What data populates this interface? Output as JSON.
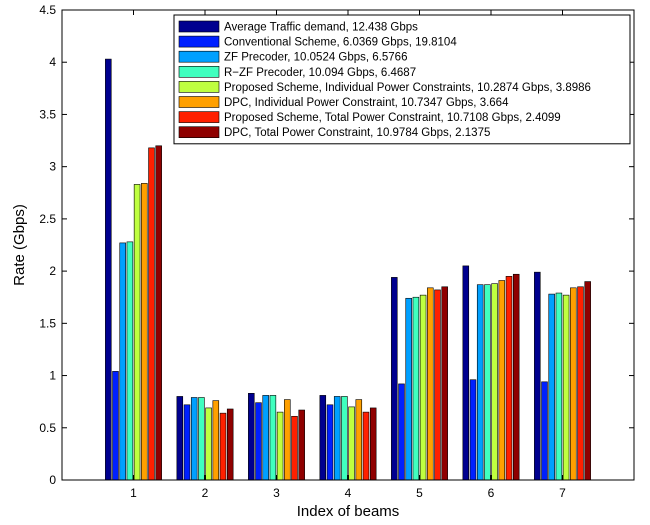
{
  "chart_data": {
    "type": "bar",
    "xlabel": "Index of beams",
    "ylabel": "Rate (Gbps)",
    "ylim": [
      0,
      4.5
    ],
    "yticks": [
      "0",
      "0.5",
      "1",
      "1.5",
      "2",
      "2.5",
      "3",
      "3.5",
      "4",
      "4.5"
    ],
    "categories": [
      "1",
      "2",
      "3",
      "4",
      "5",
      "6",
      "7"
    ],
    "grid": false,
    "legend_position": "top-right",
    "series": [
      {
        "name": "Average Traffic demand, 12.438 Gbps",
        "color": "#00008f",
        "values": [
          4.03,
          0.8,
          0.83,
          0.81,
          1.94,
          2.05,
          1.99
        ]
      },
      {
        "name": "Conventional Scheme, 6.0369 Gbps, 19.8104",
        "color": "#0020ff",
        "values": [
          1.04,
          0.72,
          0.74,
          0.72,
          0.92,
          0.96,
          0.94
        ]
      },
      {
        "name": "ZF Precoder, 10.0524 Gbps, 6.5766",
        "color": "#00a0ff",
        "values": [
          2.27,
          0.79,
          0.81,
          0.8,
          1.74,
          1.87,
          1.78
        ]
      },
      {
        "name": "R−ZF Precoder, 10.094 Gbps, 6.4687",
        "color": "#40ffbf",
        "values": [
          2.28,
          0.79,
          0.81,
          0.8,
          1.75,
          1.87,
          1.79
        ]
      },
      {
        "name": "Proposed Scheme, Individual Power Constraints, 10.2874 Gbps, 3.8986",
        "color": "#bfff40",
        "values": [
          2.83,
          0.69,
          0.65,
          0.7,
          1.77,
          1.88,
          1.77
        ]
      },
      {
        "name": "DPC, Individual Power Constraint, 10.7347 Gbps, 3.664",
        "color": "#ffa000",
        "values": [
          2.84,
          0.76,
          0.77,
          0.77,
          1.84,
          1.91,
          1.84
        ]
      },
      {
        "name": "Proposed Scheme, Total Power Constraint, 10.7108 Gbps, 2.4099",
        "color": "#ff2000",
        "values": [
          3.18,
          0.64,
          0.61,
          0.65,
          1.82,
          1.95,
          1.85
        ]
      },
      {
        "name": "DPC, Total Power Constraint, 10.9784 Gbps, 2.1375",
        "color": "#8f0000",
        "values": [
          3.2,
          0.68,
          0.67,
          0.69,
          1.85,
          1.97,
          1.9
        ]
      }
    ]
  }
}
